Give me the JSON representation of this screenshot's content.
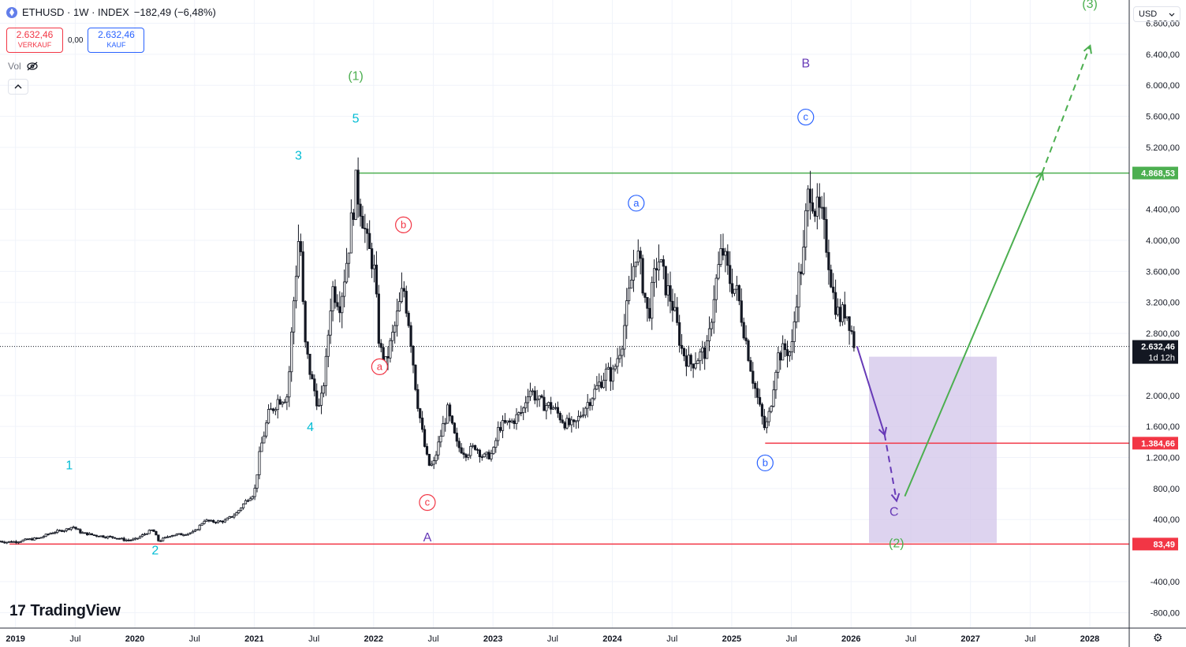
{
  "header": {
    "symbol": "ETHUSD · 1W · INDEX",
    "change": "−182,49 (−6,48%)",
    "sell_price": "2.632,46",
    "sell_label": "VERKAUF",
    "spread": "0,00",
    "buy_price": "2.632,46",
    "buy_label": "KAUF",
    "vol_label": "Vol",
    "currency": "USD",
    "logo_text": "TradingView"
  },
  "colors": {
    "green": "#4caf50",
    "red": "#f23645",
    "cyan": "#00bcd4",
    "purple": "#673ab7",
    "blue": "#2962ff",
    "box": "#d1c4e9"
  },
  "icons": [
    "ethereum-coin-icon",
    "eye-off-icon",
    "chevron-up-icon",
    "chevron-down-icon",
    "tradingview-logo-icon",
    "gear-icon"
  ],
  "chart_data": {
    "type": "candlestick",
    "symbol": "ETHUSD",
    "interval": "1W",
    "ylim": [
      -1000,
      7100
    ],
    "y_ticks": [
      "6.800,00",
      "6.400,00",
      "6.000,00",
      "5.600,00",
      "5.200,00",
      "4.400,00",
      "4.000,00",
      "3.600,00",
      "3.200,00",
      "2.800,00",
      "2.000,00",
      "1.600,00",
      "1.200,00",
      "800,00",
      "400,00",
      "-400,00",
      "-800,00"
    ],
    "y_tick_values": [
      6800,
      6400,
      6000,
      5600,
      5200,
      4400,
      4000,
      3600,
      3200,
      2800,
      2000,
      1600,
      1200,
      800,
      400,
      -400,
      -800
    ],
    "x_ticks": [
      "2019",
      "Jul",
      "2020",
      "Jul",
      "2021",
      "Jul",
      "2022",
      "Jul",
      "2023",
      "Jul",
      "2024",
      "Jul",
      "2025",
      "Jul",
      "2026",
      "Jul",
      "2027",
      "Jul",
      "2028"
    ],
    "x_tick_values": [
      2019.0,
      2019.5,
      2020.0,
      2020.5,
      2021.0,
      2021.5,
      2022.0,
      2022.5,
      2023.0,
      2023.5,
      2024.0,
      2024.5,
      2025.0,
      2025.5,
      2026.0,
      2026.5,
      2027.0,
      2027.5,
      2028.0
    ],
    "xlim": [
      2018.87,
      2028.33
    ],
    "price_path": [
      [
        2018.87,
        120
      ],
      [
        2018.92,
        110
      ],
      [
        2019.0,
        115
      ],
      [
        2019.1,
        140
      ],
      [
        2019.2,
        160
      ],
      [
        2019.3,
        230
      ],
      [
        2019.42,
        270
      ],
      [
        2019.48,
        310
      ],
      [
        2019.55,
        230
      ],
      [
        2019.65,
        200
      ],
      [
        2019.75,
        180
      ],
      [
        2019.83,
        170
      ],
      [
        2019.92,
        135
      ],
      [
        2020.0,
        140
      ],
      [
        2020.1,
        230
      ],
      [
        2020.15,
        270
      ],
      [
        2020.2,
        120
      ],
      [
        2020.3,
        200
      ],
      [
        2020.4,
        210
      ],
      [
        2020.5,
        240
      ],
      [
        2020.58,
        390
      ],
      [
        2020.65,
        370
      ],
      [
        2020.75,
        380
      ],
      [
        2020.85,
        480
      ],
      [
        2020.95,
        680
      ],
      [
        2021.0,
        740
      ],
      [
        2021.05,
        1300
      ],
      [
        2021.12,
        1750
      ],
      [
        2021.2,
        1950
      ],
      [
        2021.28,
        2000
      ],
      [
        2021.33,
        3200
      ],
      [
        2021.38,
        4200
      ],
      [
        2021.42,
        2700
      ],
      [
        2021.48,
        2200
      ],
      [
        2021.55,
        1800
      ],
      [
        2021.6,
        2400
      ],
      [
        2021.65,
        3400
      ],
      [
        2021.72,
        3200
      ],
      [
        2021.78,
        3800
      ],
      [
        2021.85,
        4700
      ],
      [
        2021.9,
        4400
      ],
      [
        2021.95,
        3900
      ],
      [
        2022.0,
        3700
      ],
      [
        2022.05,
        2600
      ],
      [
        2022.1,
        2400
      ],
      [
        2022.18,
        2900
      ],
      [
        2022.25,
        3400
      ],
      [
        2022.3,
        2900
      ],
      [
        2022.36,
        2000
      ],
      [
        2022.42,
        1400
      ],
      [
        2022.46,
        1100
      ],
      [
        2022.5,
        1100
      ],
      [
        2022.58,
        1600
      ],
      [
        2022.62,
        1800
      ],
      [
        2022.7,
        1350
      ],
      [
        2022.78,
        1250
      ],
      [
        2022.85,
        1350
      ],
      [
        2022.92,
        1200
      ],
      [
        2023.0,
        1250
      ],
      [
        2023.05,
        1600
      ],
      [
        2023.15,
        1650
      ],
      [
        2023.25,
        1800
      ],
      [
        2023.3,
        2100
      ],
      [
        2023.4,
        1900
      ],
      [
        2023.5,
        1850
      ],
      [
        2023.6,
        1650
      ],
      [
        2023.68,
        1600
      ],
      [
        2023.75,
        1800
      ],
      [
        2023.85,
        2050
      ],
      [
        2023.95,
        2300
      ],
      [
        2024.0,
        2250
      ],
      [
        2024.08,
        2700
      ],
      [
        2024.15,
        3400
      ],
      [
        2024.2,
        3900
      ],
      [
        2024.25,
        3500
      ],
      [
        2024.3,
        3000
      ],
      [
        2024.38,
        3800
      ],
      [
        2024.45,
        3400
      ],
      [
        2024.5,
        3200
      ],
      [
        2024.58,
        2600
      ],
      [
        2024.65,
        2400
      ],
      [
        2024.72,
        2500
      ],
      [
        2024.8,
        2600
      ],
      [
        2024.85,
        3300
      ],
      [
        2024.92,
        3900
      ],
      [
        2024.98,
        3500
      ],
      [
        2025.05,
        3300
      ],
      [
        2025.12,
        2700
      ],
      [
        2025.18,
        2200
      ],
      [
        2025.24,
        1800
      ],
      [
        2025.28,
        1550
      ],
      [
        2025.32,
        1800
      ],
      [
        2025.38,
        2500
      ],
      [
        2025.45,
        2600
      ],
      [
        2025.5,
        2550
      ],
      [
        2025.55,
        3400
      ],
      [
        2025.6,
        3800
      ],
      [
        2025.63,
        4500
      ],
      [
        2025.66,
        4700
      ],
      [
        2025.7,
        4400
      ],
      [
        2025.75,
        4300
      ],
      [
        2025.8,
        3900
      ],
      [
        2025.85,
        3300
      ],
      [
        2025.9,
        3000
      ],
      [
        2025.95,
        3100
      ],
      [
        2025.98,
        3000
      ],
      [
        2026.03,
        2632
      ]
    ],
    "annotations": {
      "wave_labels": [
        {
          "text": "1",
          "x": 2019.45,
          "y": 1050,
          "color": "cyan"
        },
        {
          "text": "2",
          "x": 2020.17,
          "y": -50,
          "color": "cyan"
        },
        {
          "text": "3",
          "x": 2021.37,
          "y": 5040,
          "color": "cyan"
        },
        {
          "text": "4",
          "x": 2021.47,
          "y": 1540,
          "color": "cyan"
        },
        {
          "text": "5",
          "x": 2021.85,
          "y": 5520,
          "color": "cyan"
        },
        {
          "text": "(1)",
          "x": 2021.85,
          "y": 6070,
          "color": "green"
        },
        {
          "text": "(2)",
          "x": 2026.38,
          "y": 40,
          "color": "green"
        },
        {
          "text": "(3)",
          "x": 2028.0,
          "y": 7000,
          "color": "green"
        },
        {
          "text": "A",
          "x": 2022.45,
          "y": 120,
          "color": "purple"
        },
        {
          "text": "B",
          "x": 2025.62,
          "y": 6230,
          "color": "purple"
        },
        {
          "text": "C",
          "x": 2026.36,
          "y": 450,
          "color": "purple"
        }
      ],
      "circled_labels": [
        {
          "text": "a",
          "x": 2022.05,
          "y": 2370,
          "color": "red"
        },
        {
          "text": "b",
          "x": 2022.25,
          "y": 4200,
          "color": "red"
        },
        {
          "text": "c",
          "x": 2022.45,
          "y": 620,
          "color": "red"
        },
        {
          "text": "a",
          "x": 2024.2,
          "y": 4480,
          "color": "blue"
        },
        {
          "text": "b",
          "x": 2025.28,
          "y": 1130,
          "color": "blue"
        },
        {
          "text": "c",
          "x": 2025.62,
          "y": 5590,
          "color": "blue"
        }
      ],
      "levels": [
        {
          "value": 4868.53,
          "label": "4.868,53",
          "color": "green",
          "from": 2021.85
        },
        {
          "value": 1384.66,
          "label": "1.384,66",
          "color": "red",
          "from": 2025.28
        },
        {
          "value": 83.49,
          "label": "83,49",
          "color": "red",
          "from": 2018.95
        }
      ],
      "current_price": {
        "value": 2632.46,
        "label": "2.632,46",
        "countdown": "1d 12h"
      },
      "target_box": {
        "x_from": 2026.15,
        "x_to": 2027.22,
        "y_from": 100,
        "y_to": 2500
      },
      "arrows": [
        {
          "from": [
            2026.05,
            2632
          ],
          "to": [
            2026.28,
            1500
          ],
          "style": "solid",
          "color": "purple"
        },
        {
          "from": [
            2026.28,
            1500
          ],
          "to": [
            2026.38,
            650
          ],
          "style": "dashed",
          "color": "purple"
        },
        {
          "from": [
            2026.45,
            700
          ],
          "to": [
            2027.6,
            4868
          ],
          "style": "solid",
          "color": "green"
        },
        {
          "from": [
            2027.6,
            4868
          ],
          "to": [
            2028.0,
            6500
          ],
          "style": "dashed",
          "color": "green"
        }
      ]
    }
  }
}
